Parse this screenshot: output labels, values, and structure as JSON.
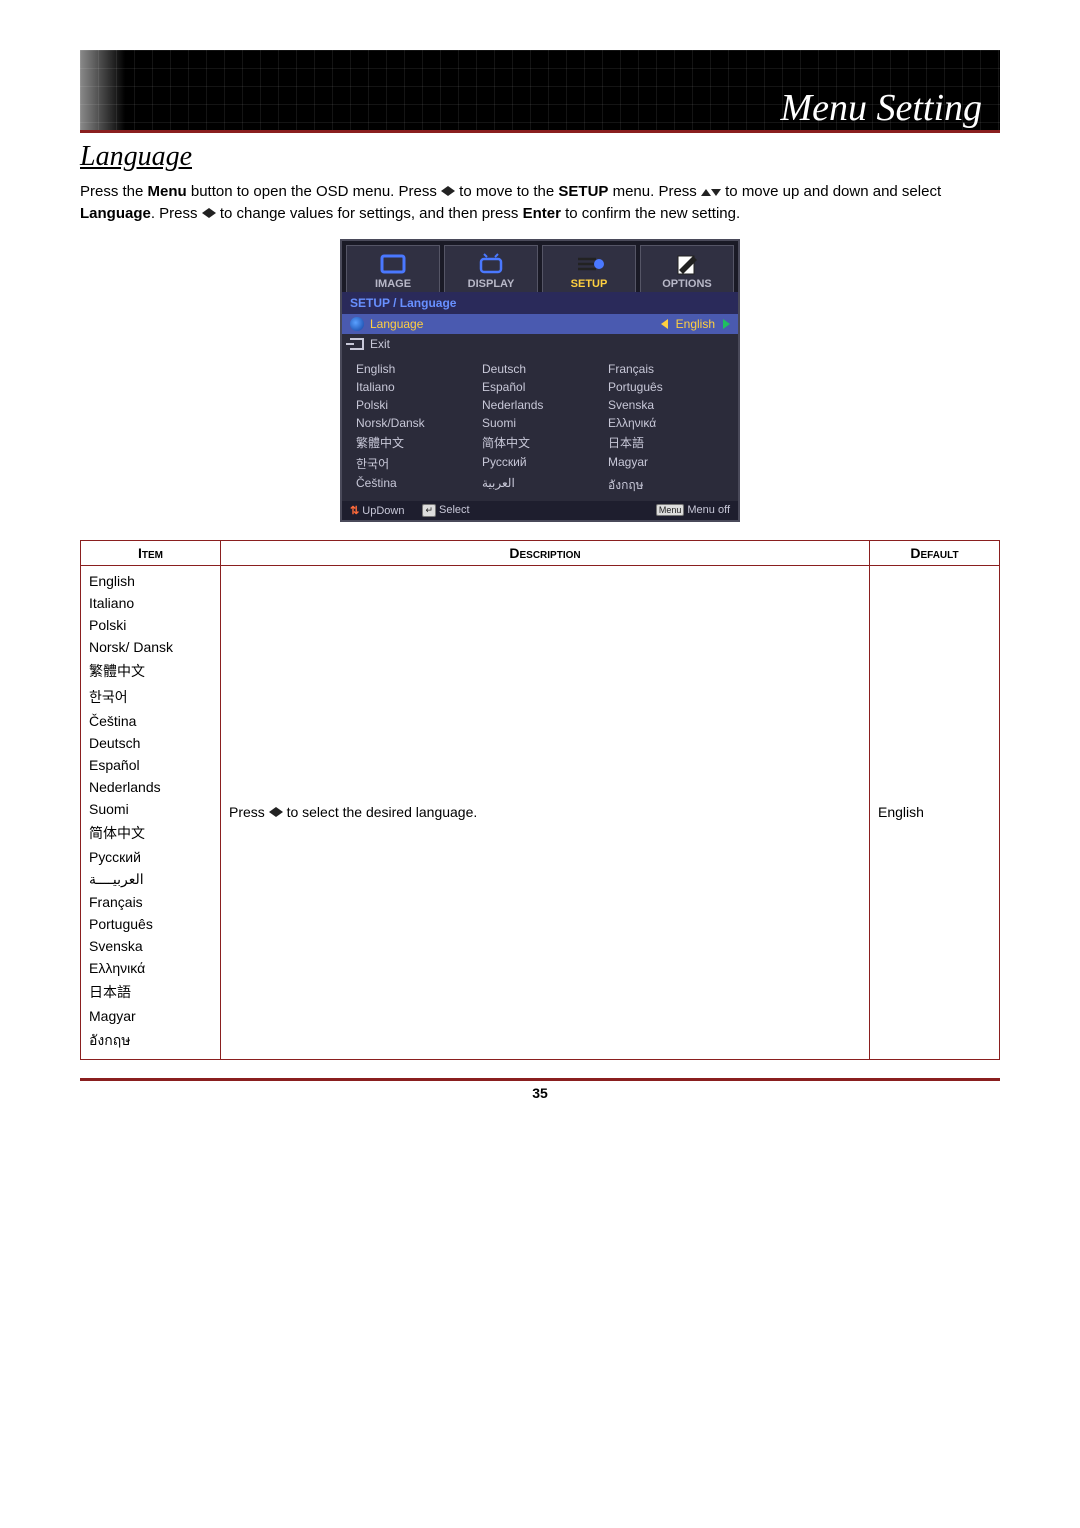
{
  "header": {
    "title": "Menu Setting"
  },
  "section": {
    "heading": "Language"
  },
  "instruction": {
    "parts": [
      "Press the ",
      "Menu",
      " button to open the OSD menu. Press ",
      "◄►",
      " to move to the ",
      "SETUP",
      " menu. Press ",
      "▲▼",
      " to move up and down and select ",
      "Language",
      ". Press ",
      "◄►",
      " to change values for settings, and then press ",
      "Enter",
      " to confirm the new setting."
    ]
  },
  "osd": {
    "tabs": [
      {
        "label": "IMAGE",
        "active": false
      },
      {
        "label": "DISPLAY",
        "active": false
      },
      {
        "label": "SETUP",
        "active": true
      },
      {
        "label": "OPTIONS",
        "active": false
      }
    ],
    "breadcrumb": "SETUP / Language",
    "language_row": {
      "label": "Language",
      "value": "English"
    },
    "exit_row": {
      "label": "Exit"
    },
    "languages_grid": [
      "English",
      "Deutsch",
      "Français",
      "Italiano",
      "Español",
      "Português",
      "Polski",
      "Nederlands",
      "Svenska",
      "Norsk/Dansk",
      "Suomi",
      "Ελληνικά",
      "繁體中文",
      "简体中文",
      "日本語",
      "한국어",
      "Русский",
      "Magyar",
      "Čeština",
      "العربية",
      "อังกฤษ"
    ],
    "footer": {
      "updown": "UpDown",
      "select": "Select",
      "menu_key": "Menu",
      "menuoff": "Menu off"
    }
  },
  "spec_table": {
    "headers": {
      "item": "Item",
      "description": "Description",
      "default": "Default"
    },
    "items": [
      "English",
      "Italiano",
      "Polski",
      "Norsk/ Dansk",
      "繁體中文",
      "한국어",
      "Čeština",
      "Deutsch",
      "Español",
      "Nederlands",
      "Suomi",
      "简体中文",
      "Русский",
      "العربيــــة",
      "Français",
      "Português",
      "Svenska",
      "Ελληνικά",
      "日本語",
      "Magyar",
      "อังกฤษ"
    ],
    "description": "Press ◄► to select the desired language.",
    "default": "English"
  },
  "page_number": "35",
  "colors": {
    "accent": "#8a1f1f",
    "osd_bg": "#2b2b3a",
    "osd_highlight": "#4a5ab0",
    "osd_yellow": "#ffd040"
  }
}
